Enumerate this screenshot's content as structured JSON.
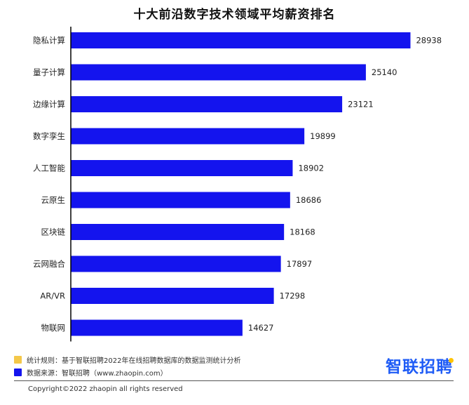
{
  "header": {
    "title": "十大前沿数字技术领域平均薪资排名"
  },
  "chart_data": {
    "type": "bar",
    "orientation": "horizontal",
    "title": "十大前沿数字技术领域平均薪资排名",
    "categories": [
      "隐私计算",
      "量子计算",
      "边缘计算",
      "数字孪生",
      "人工智能",
      "云原生",
      "区块链",
      "云网融合",
      "AR/VR",
      "物联网"
    ],
    "values": [
      28938,
      25140,
      23121,
      19899,
      18902,
      18686,
      18168,
      17897,
      17298,
      14627
    ],
    "xlim": [
      0,
      31000
    ],
    "bar_color": "#1414ee",
    "data_labels": true,
    "grid": false
  },
  "footnotes": [
    {
      "text": "统计规则：基于智联招聘2022年在线招聘数据库的数据监测统计分析",
      "color": "#f4c84a"
    },
    {
      "text": "数据来源：智联招聘（www.zhaopin.com）",
      "color": "#1414ee"
    }
  ],
  "brand": {
    "name": "智联招聘",
    "color": "#1f5cf6"
  },
  "copyright": "Copyright©2022 zhaopin all rights reserved"
}
